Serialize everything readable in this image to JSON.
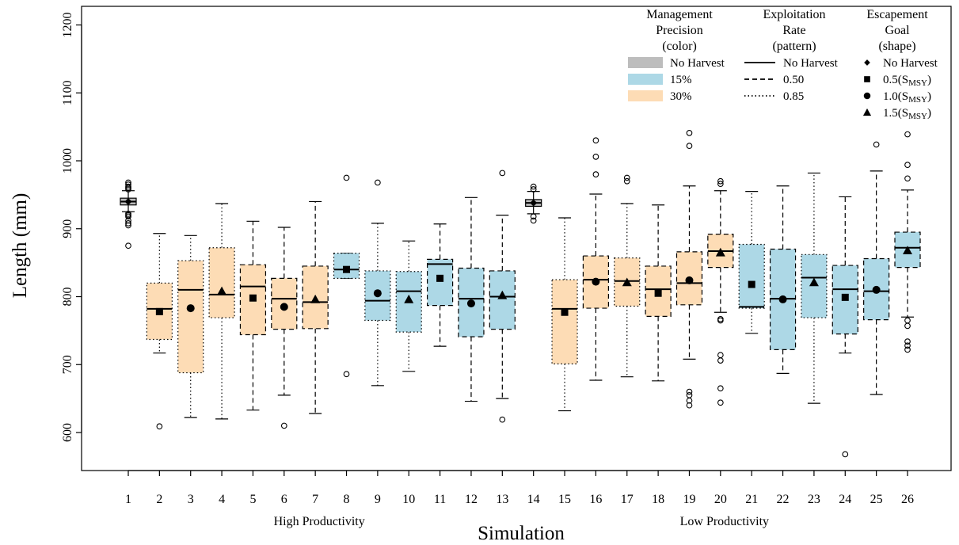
{
  "chart_data": {
    "type": "box",
    "xlabel": "Simulation",
    "ylabel": "Length (mm)",
    "ylim": [
      560,
      1210
    ],
    "yticks": [
      600,
      700,
      800,
      900,
      1000,
      1100,
      1200
    ],
    "group_labels": [
      {
        "label": "High Productivity",
        "center": 7
      },
      {
        "label": "Low Productivity",
        "center": 20
      }
    ],
    "colors": {
      "No Harvest": "#bdbdbd",
      "15%": "#add8e6",
      "30%": "#fddcb5"
    },
    "legend": {
      "placement": "top-right",
      "precision": {
        "title": [
          "Management",
          "Precision",
          "(color)"
        ],
        "items": [
          "No Harvest",
          "15%",
          "30%"
        ]
      },
      "exploitation": {
        "title": [
          "Exploitation",
          "Rate",
          "(pattern)"
        ],
        "items": [
          "No Harvest",
          "0.50",
          "0.85"
        ]
      },
      "escapement": {
        "title": [
          "Escapement",
          "Goal",
          "(shape)"
        ],
        "items": [
          {
            "text": "No Harvest",
            "sub": ""
          },
          {
            "text": "0.5(S",
            "sub": "MSY",
            "tail": ")"
          },
          {
            "text": "1.0(S",
            "sub": "MSY",
            "tail": ")"
          },
          {
            "text": "1.5(S",
            "sub": "MSY",
            "tail": ")"
          }
        ]
      }
    },
    "boxes": [
      {
        "sim": 1,
        "color": "No Harvest",
        "pattern": "No Harvest",
        "shape": "diamond",
        "q1": 935,
        "median": 940,
        "q3": 945,
        "wlo": 925,
        "whi": 956,
        "mean": 940,
        "out": [
          875,
          905,
          908,
          912,
          918,
          920,
          922,
          958,
          960,
          962,
          965,
          968
        ]
      },
      {
        "sim": 2,
        "color": "30%",
        "pattern": "0.85",
        "shape": "square",
        "q1": 737,
        "median": 782,
        "q3": 820,
        "wlo": 717,
        "whi": 893,
        "mean": 778,
        "out": [
          609
        ]
      },
      {
        "sim": 3,
        "color": "30%",
        "pattern": "0.85",
        "shape": "circle",
        "q1": 688,
        "median": 810,
        "q3": 853,
        "wlo": 622,
        "whi": 890,
        "mean": 783,
        "out": []
      },
      {
        "sim": 4,
        "color": "30%",
        "pattern": "0.85",
        "shape": "triangle",
        "q1": 769,
        "median": 803,
        "q3": 872,
        "wlo": 620,
        "whi": 937,
        "mean": 808,
        "out": []
      },
      {
        "sim": 5,
        "color": "30%",
        "pattern": "0.50",
        "shape": "square",
        "q1": 744,
        "median": 815,
        "q3": 847,
        "wlo": 633,
        "whi": 911,
        "mean": 798,
        "out": []
      },
      {
        "sim": 6,
        "color": "30%",
        "pattern": "0.50",
        "shape": "circle",
        "q1": 752,
        "median": 797,
        "q3": 827,
        "wlo": 655,
        "whi": 902,
        "mean": 785,
        "out": [
          610
        ]
      },
      {
        "sim": 7,
        "color": "30%",
        "pattern": "0.50",
        "shape": "triangle",
        "q1": 753,
        "median": 792,
        "q3": 845,
        "wlo": 628,
        "whi": 940,
        "mean": 796,
        "out": []
      },
      {
        "sim": 8,
        "color": "15%",
        "pattern": "0.85",
        "shape": "square",
        "q1": 827,
        "median": 840,
        "q3": 864,
        "wlo": 827,
        "whi": 864,
        "mean": 840,
        "out": [
          686,
          975
        ]
      },
      {
        "sim": 9,
        "color": "15%",
        "pattern": "0.85",
        "shape": "circle",
        "q1": 765,
        "median": 794,
        "q3": 838,
        "wlo": 669,
        "whi": 908,
        "mean": 805,
        "out": [
          968
        ]
      },
      {
        "sim": 10,
        "color": "15%",
        "pattern": "0.85",
        "shape": "triangle",
        "q1": 748,
        "median": 808,
        "q3": 837,
        "wlo": 690,
        "whi": 882,
        "mean": 796,
        "out": []
      },
      {
        "sim": 11,
        "color": "15%",
        "pattern": "0.50",
        "shape": "square",
        "q1": 787,
        "median": 848,
        "q3": 855,
        "wlo": 727,
        "whi": 907,
        "mean": 827,
        "out": []
      },
      {
        "sim": 12,
        "color": "15%",
        "pattern": "0.50",
        "shape": "circle",
        "q1": 741,
        "median": 797,
        "q3": 842,
        "wlo": 646,
        "whi": 946,
        "mean": 790,
        "out": []
      },
      {
        "sim": 13,
        "color": "15%",
        "pattern": "0.50",
        "shape": "triangle",
        "q1": 752,
        "median": 800,
        "q3": 838,
        "wlo": 650,
        "whi": 920,
        "mean": 802,
        "out": [
          619,
          982
        ]
      },
      {
        "sim": 14,
        "color": "No Harvest",
        "pattern": "No Harvest",
        "shape": "diamond",
        "q1": 933,
        "median": 938,
        "q3": 943,
        "wlo": 922,
        "whi": 955,
        "mean": 938,
        "out": [
          912,
          918,
          958,
          962
        ]
      },
      {
        "sim": 15,
        "color": "30%",
        "pattern": "0.85",
        "shape": "square",
        "q1": 701,
        "median": 782,
        "q3": 825,
        "wlo": 632,
        "whi": 916,
        "mean": 777,
        "out": []
      },
      {
        "sim": 16,
        "color": "30%",
        "pattern": "0.50",
        "shape": "circle",
        "q1": 783,
        "median": 825,
        "q3": 860,
        "wlo": 677,
        "whi": 951,
        "mean": 822,
        "out": [
          980,
          1006,
          1030
        ]
      },
      {
        "sim": 17,
        "color": "30%",
        "pattern": "0.85",
        "shape": "triangle",
        "q1": 786,
        "median": 823,
        "q3": 857,
        "wlo": 682,
        "whi": 937,
        "mean": 821,
        "out": [
          970,
          975
        ]
      },
      {
        "sim": 18,
        "color": "30%",
        "pattern": "0.50",
        "shape": "square",
        "q1": 771,
        "median": 811,
        "q3": 845,
        "wlo": 676,
        "whi": 935,
        "mean": 805,
        "out": []
      },
      {
        "sim": 19,
        "color": "30%",
        "pattern": "0.50",
        "shape": "circle",
        "q1": 788,
        "median": 820,
        "q3": 866,
        "wlo": 708,
        "whi": 963,
        "mean": 824,
        "out": [
          640,
          647,
          655,
          660,
          1022,
          1041
        ]
      },
      {
        "sim": 20,
        "color": "30%",
        "pattern": "0.50",
        "shape": "triangle",
        "q1": 843,
        "median": 867,
        "q3": 892,
        "wlo": 777,
        "whi": 956,
        "mean": 865,
        "out": [
          644,
          665,
          706,
          714,
          765,
          767,
          966,
          970
        ]
      },
      {
        "sim": 21,
        "color": "15%",
        "pattern": "0.85",
        "shape": "square",
        "q1": 783,
        "median": 785,
        "q3": 877,
        "wlo": 746,
        "whi": 955,
        "mean": 818,
        "out": []
      },
      {
        "sim": 22,
        "color": "15%",
        "pattern": "0.50",
        "shape": "circle",
        "q1": 722,
        "median": 797,
        "q3": 870,
        "wlo": 687,
        "whi": 963,
        "mean": 796,
        "out": []
      },
      {
        "sim": 23,
        "color": "15%",
        "pattern": "0.85",
        "shape": "triangle",
        "q1": 769,
        "median": 828,
        "q3": 862,
        "wlo": 643,
        "whi": 982,
        "mean": 821,
        "out": []
      },
      {
        "sim": 24,
        "color": "15%",
        "pattern": "0.50",
        "shape": "square",
        "q1": 745,
        "median": 811,
        "q3": 846,
        "wlo": 717,
        "whi": 947,
        "mean": 799,
        "out": [
          568
        ]
      },
      {
        "sim": 25,
        "color": "15%",
        "pattern": "0.50",
        "shape": "circle",
        "q1": 766,
        "median": 808,
        "q3": 856,
        "wlo": 656,
        "whi": 985,
        "mean": 810,
        "out": [
          1024
        ]
      },
      {
        "sim": 26,
        "color": "15%",
        "pattern": "0.50",
        "shape": "triangle",
        "q1": 843,
        "median": 872,
        "q3": 895,
        "wlo": 770,
        "whi": 957,
        "mean": 868,
        "out": [
          722,
          728,
          734,
          757,
          765,
          974,
          994,
          1039
        ]
      }
    ]
  }
}
